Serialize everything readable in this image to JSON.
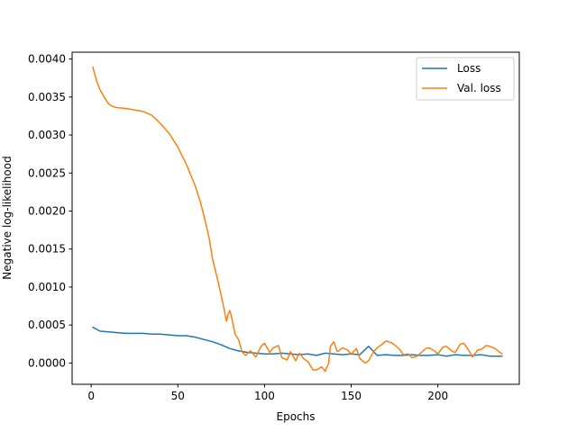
{
  "chart_data": {
    "type": "line",
    "xlabel": "Epochs",
    "ylabel": "Negative log-likelihood",
    "xlim": [
      -11,
      247
    ],
    "ylim": [
      -0.00028,
      0.00409
    ],
    "xticks": [
      0,
      50,
      100,
      150,
      200
    ],
    "xtick_labels": [
      "0",
      "50",
      "100",
      "150",
      "200"
    ],
    "yticks": [
      0.0,
      0.0005,
      0.001,
      0.0015,
      0.002,
      0.0025,
      0.003,
      0.0035,
      0.004
    ],
    "ytick_labels": [
      "0.0000",
      "0.0005",
      "0.0010",
      "0.0015",
      "0.0020",
      "0.0025",
      "0.0030",
      "0.0035",
      "0.0040"
    ],
    "grid": false,
    "legend_position": "top-right",
    "series": [
      {
        "name": "Loss",
        "color": "#1f77b4",
        "x": [
          1,
          5,
          10,
          15,
          20,
          25,
          30,
          35,
          40,
          45,
          50,
          55,
          60,
          65,
          70,
          75,
          80,
          85,
          90,
          95,
          100,
          105,
          110,
          115,
          120,
          125,
          130,
          135,
          140,
          145,
          150,
          155,
          160,
          165,
          170,
          175,
          180,
          185,
          190,
          195,
          200,
          205,
          210,
          215,
          220,
          225,
          230,
          237
        ],
        "y": [
          0.00047,
          0.00042,
          0.00041,
          0.0004,
          0.00039,
          0.00039,
          0.00039,
          0.00038,
          0.00038,
          0.00037,
          0.00036,
          0.00036,
          0.00034,
          0.00031,
          0.00028,
          0.00024,
          0.00019,
          0.00016,
          0.00014,
          0.00013,
          0.00012,
          0.00012,
          0.00013,
          0.00012,
          0.00011,
          0.00012,
          0.0001,
          0.00013,
          0.00012,
          0.00011,
          0.00012,
          0.00011,
          0.00022,
          0.0001,
          0.00011,
          0.0001,
          0.0001,
          0.00011,
          0.0001,
          0.0001,
          0.00011,
          9e-05,
          0.00011,
          0.0001,
          0.0001,
          0.00011,
          9e-05,
          9e-05
        ]
      },
      {
        "name": "Val. loss",
        "color": "#ff7f0e",
        "x": [
          1,
          3,
          5,
          8,
          10,
          12,
          15,
          20,
          25,
          30,
          35,
          40,
          45,
          50,
          55,
          60,
          63,
          65,
          68,
          70,
          73,
          75,
          77,
          78,
          79,
          80,
          81,
          83,
          85,
          87,
          89,
          92,
          95,
          98,
          100,
          103,
          105,
          108,
          110,
          113,
          115,
          118,
          120,
          123,
          125,
          128,
          130,
          133,
          135,
          137,
          138,
          140,
          142,
          145,
          148,
          150,
          153,
          155,
          158,
          160,
          163,
          165,
          168,
          170,
          173,
          175,
          178,
          180,
          183,
          185,
          188,
          190,
          193,
          195,
          198,
          200,
          203,
          205,
          208,
          210,
          213,
          215,
          218,
          220,
          223,
          225,
          228,
          230,
          233,
          237
        ],
        "y": [
          0.00389,
          0.00372,
          0.0036,
          0.00348,
          0.00341,
          0.00338,
          0.00336,
          0.00335,
          0.00333,
          0.00331,
          0.00326,
          0.00315,
          0.00302,
          0.00284,
          0.00261,
          0.00233,
          0.00212,
          0.00194,
          0.00165,
          0.00137,
          0.00109,
          0.00089,
          0.00067,
          0.00055,
          0.00064,
          0.00069,
          0.0006,
          0.00038,
          0.00031,
          0.00015,
          0.0001,
          0.00016,
          8e-05,
          0.00022,
          0.00026,
          0.00014,
          0.0002,
          0.00023,
          7e-05,
          4e-05,
          0.00015,
          3e-05,
          0.00013,
          5e-05,
          2e-05,
          -9e-05,
          -9e-05,
          -5e-05,
          -0.00011,
          0.0,
          0.00022,
          0.00028,
          0.00015,
          0.0002,
          0.00017,
          0.00012,
          0.00019,
          6e-05,
          0.0,
          3e-05,
          0.00015,
          0.0002,
          0.00025,
          0.00029,
          0.00027,
          0.00024,
          0.00018,
          0.00011,
          0.00012,
          7e-05,
          9e-05,
          0.00013,
          0.00019,
          0.0002,
          0.00016,
          0.00012,
          0.00021,
          0.00022,
          0.00016,
          0.00014,
          0.00025,
          0.00026,
          0.00016,
          8e-05,
          0.00017,
          0.00018,
          0.00023,
          0.00022,
          0.00019,
          0.00012
        ]
      }
    ]
  }
}
